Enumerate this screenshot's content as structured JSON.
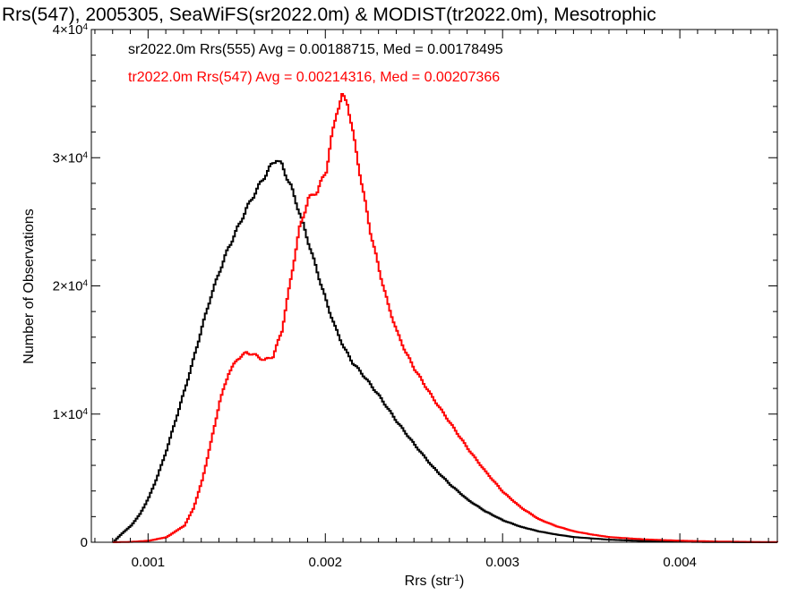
{
  "chart_data": {
    "type": "line",
    "title": "Rrs(547), 2005305, SeaWiFS(sr2022.0m) & MODIST(tr2022.0m), Mesotrophic",
    "xlabel": "Rrs (str",
    "xlabel_sup": "-1",
    "xlabel_end": ")",
    "ylabel": "Number of Observations",
    "xlim": [
      0.00068,
      0.00455
    ],
    "ylim": [
      0,
      40000
    ],
    "xticks": [
      {
        "value": 0.001,
        "label": "0.001"
      },
      {
        "value": 0.002,
        "label": "0.002"
      },
      {
        "value": 0.003,
        "label": "0.003"
      },
      {
        "value": 0.004,
        "label": "0.004"
      }
    ],
    "yticks": [
      {
        "value": 0,
        "mantissa": "0",
        "exp": ""
      },
      {
        "value": 10000,
        "mantissa": "1×10",
        "exp": "4"
      },
      {
        "value": 20000,
        "mantissa": "2×10",
        "exp": "4"
      },
      {
        "value": 30000,
        "mantissa": "3×10",
        "exp": "4"
      },
      {
        "value": 40000,
        "mantissa": "4×10",
        "exp": "4"
      }
    ],
    "legend_position": "top-left",
    "series": [
      {
        "name": "sr2022.0m Rrs(555) Avg = 0.00188715, Med = 0.00178495",
        "color": "#000000",
        "points": [
          [
            0.0008,
            0
          ],
          [
            0.00082,
            300
          ],
          [
            0.00085,
            700
          ],
          [
            0.0009,
            1300
          ],
          [
            0.00095,
            2200
          ],
          [
            0.001,
            3500
          ],
          [
            0.00105,
            5200
          ],
          [
            0.0011,
            7200
          ],
          [
            0.00115,
            9500
          ],
          [
            0.0012,
            11800
          ],
          [
            0.00125,
            14200
          ],
          [
            0.0013,
            16800
          ],
          [
            0.00135,
            19200
          ],
          [
            0.0014,
            21200
          ],
          [
            0.00145,
            23000
          ],
          [
            0.0015,
            24500
          ],
          [
            0.00155,
            26000
          ],
          [
            0.0016,
            27300
          ],
          [
            0.00165,
            28500
          ],
          [
            0.0017,
            29600
          ],
          [
            0.00172,
            29900
          ],
          [
            0.00175,
            29400
          ],
          [
            0.0018,
            27800
          ],
          [
            0.00185,
            25700
          ],
          [
            0.0019,
            23400
          ],
          [
            0.00195,
            21100
          ],
          [
            0.002,
            18800
          ],
          [
            0.00205,
            16800
          ],
          [
            0.0021,
            15200
          ],
          [
            0.00215,
            14000
          ],
          [
            0.0022,
            13200
          ],
          [
            0.00225,
            12300
          ],
          [
            0.0023,
            11400
          ],
          [
            0.00235,
            10400
          ],
          [
            0.0024,
            9400
          ],
          [
            0.0025,
            7600
          ],
          [
            0.0026,
            5900
          ],
          [
            0.0027,
            4500
          ],
          [
            0.0028,
            3300
          ],
          [
            0.0029,
            2400
          ],
          [
            0.003,
            1700
          ],
          [
            0.0031,
            1200
          ],
          [
            0.0032,
            850
          ],
          [
            0.0033,
            600
          ],
          [
            0.0034,
            400
          ],
          [
            0.0036,
            200
          ],
          [
            0.0038,
            90
          ],
          [
            0.004,
            40
          ],
          [
            0.0042,
            15
          ],
          [
            0.0044,
            5
          ],
          [
            0.00455,
            0
          ]
        ]
      },
      {
        "name": "tr2022.0m Rrs(547) Avg = 0.00214316, Med = 0.00207366",
        "color": "#ff0000",
        "points": [
          [
            0.0008,
            0
          ],
          [
            0.0009,
            30
          ],
          [
            0.001,
            120
          ],
          [
            0.0011,
            400
          ],
          [
            0.0012,
            1300
          ],
          [
            0.00125,
            2600
          ],
          [
            0.0013,
            4800
          ],
          [
            0.00135,
            7800
          ],
          [
            0.0014,
            11000
          ],
          [
            0.00145,
            13200
          ],
          [
            0.0015,
            14300
          ],
          [
            0.00155,
            14800
          ],
          [
            0.0016,
            14600
          ],
          [
            0.00165,
            14200
          ],
          [
            0.0017,
            14500
          ],
          [
            0.00175,
            16500
          ],
          [
            0.0018,
            20500
          ],
          [
            0.00185,
            24500
          ],
          [
            0.0019,
            26800
          ],
          [
            0.00195,
            27400
          ],
          [
            0.002,
            29000
          ],
          [
            0.00203,
            31500
          ],
          [
            0.00206,
            33600
          ],
          [
            0.00209,
            34800
          ],
          [
            0.00212,
            34300
          ],
          [
            0.00215,
            32000
          ],
          [
            0.0022,
            28000
          ],
          [
            0.00225,
            24200
          ],
          [
            0.0023,
            21200
          ],
          [
            0.00235,
            18500
          ],
          [
            0.0024,
            16400
          ],
          [
            0.00245,
            14800
          ],
          [
            0.0025,
            13500
          ],
          [
            0.0026,
            11300
          ],
          [
            0.0027,
            9300
          ],
          [
            0.0028,
            7300
          ],
          [
            0.0029,
            5500
          ],
          [
            0.003,
            3900
          ],
          [
            0.0031,
            2700
          ],
          [
            0.0032,
            1800
          ],
          [
            0.0033,
            1250
          ],
          [
            0.0034,
            850
          ],
          [
            0.0035,
            600
          ],
          [
            0.0036,
            400
          ],
          [
            0.0038,
            220
          ],
          [
            0.004,
            120
          ],
          [
            0.0042,
            60
          ],
          [
            0.0044,
            25
          ],
          [
            0.00455,
            10
          ]
        ]
      }
    ]
  }
}
